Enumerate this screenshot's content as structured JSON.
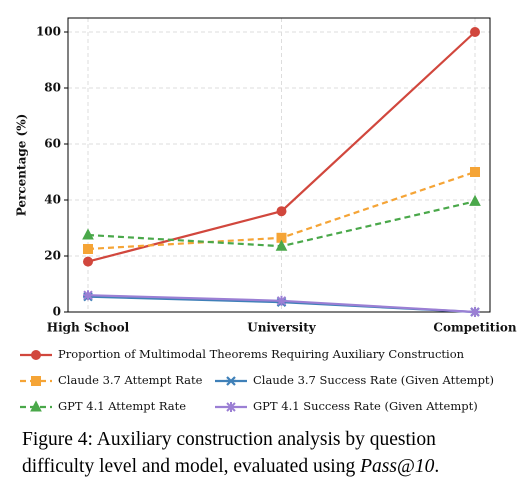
{
  "chart_data": {
    "type": "line",
    "y_label": "Percentage (%)",
    "categories": [
      "High School",
      "University",
      "Competition"
    ],
    "series": [
      {
        "name": "Proportion of Multimodal Theorems Requiring Auxiliary Construction",
        "color": "#d1473d",
        "marker": "circle",
        "dashed": false,
        "values": [
          18,
          36,
          100
        ]
      },
      {
        "name": "Claude 3.7 Attempt Rate",
        "color": "#f5a436",
        "marker": "square",
        "dashed": true,
        "values": [
          22.5,
          26.5,
          50
        ]
      },
      {
        "name": "Claude 3.7 Success Rate (Given Attempt)",
        "color": "#3f80b8",
        "marker": "x",
        "dashed": false,
        "values": [
          5.5,
          3.5,
          0
        ]
      },
      {
        "name": "GPT 4.1 Attempt Rate",
        "color": "#4aa84a",
        "marker": "triangle",
        "dashed": true,
        "values": [
          27.5,
          23.5,
          39.5
        ]
      },
      {
        "name": "GPT 4.1 Success Rate (Given Attempt)",
        "color": "#9b7fd4",
        "marker": "star",
        "dashed": false,
        "values": [
          6,
          4,
          0
        ]
      }
    ],
    "ylim": [
      0,
      105
    ],
    "yticks": [
      0,
      20,
      40,
      60,
      80,
      100
    ],
    "grid": true
  },
  "caption": {
    "label": "Figure 4:",
    "text": "Auxiliary construction analysis by question difficulty level and model, evaluated using ",
    "emphasis": "Pass@10",
    "end": "."
  }
}
